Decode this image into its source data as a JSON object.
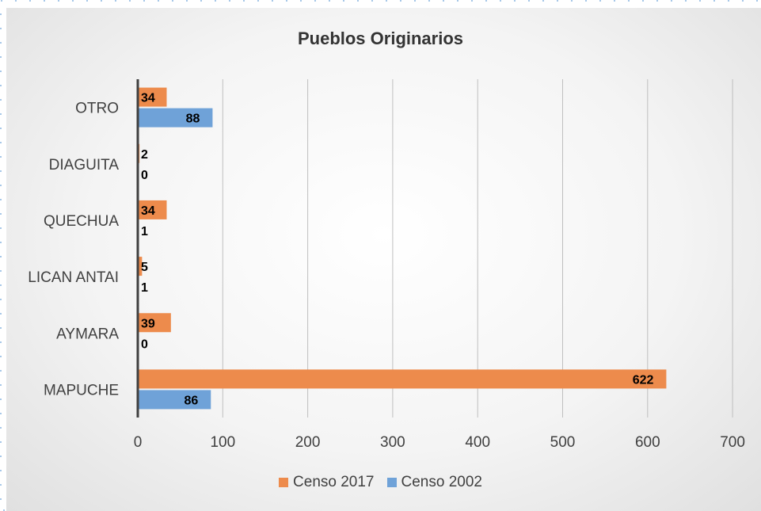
{
  "chart_data": {
    "type": "bar",
    "orientation": "horizontal",
    "title": "Pueblos Originarios",
    "categories": [
      "MAPUCHE",
      "AYMARA",
      "LICAN ANTAI",
      "QUECHUA",
      "DIAGUITA",
      "OTRO"
    ],
    "series": [
      {
        "name": "Censo 2017",
        "color": "#ED8B4C",
        "values": [
          622,
          39,
          5,
          34,
          2,
          34
        ]
      },
      {
        "name": "Censo 2002",
        "color": "#6FA2D8",
        "values": [
          86,
          0,
          1,
          1,
          0,
          88
        ]
      }
    ],
    "xlim": [
      0,
      700
    ],
    "xticks": [
      0,
      100,
      200,
      300,
      400,
      500,
      600,
      700
    ],
    "grid": true,
    "legend_position": "bottom"
  }
}
